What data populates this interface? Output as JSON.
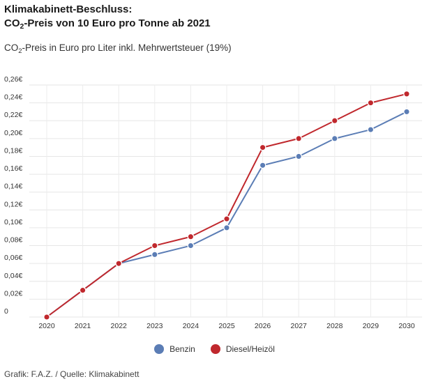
{
  "title": {
    "line1": "Klimakabinett-Beschluss:",
    "line2_pre": "CO",
    "line2_sub": "2",
    "line2_post": "-Preis von 10 Euro pro Tonne ab 2021"
  },
  "subtitle": {
    "pre": "CO",
    "sub": "2",
    "post": "-Preis in Euro pro Liter inkl. Mehrwertsteuer (19%)"
  },
  "source": "Grafik: F.A.Z. / Quelle: Klimakabinett",
  "chart_data": {
    "type": "line",
    "x": [
      2020,
      2021,
      2022,
      2023,
      2024,
      2025,
      2026,
      2027,
      2028,
      2029,
      2030
    ],
    "y_ticks": [
      0,
      0.02,
      0.04,
      0.06,
      0.08,
      0.1,
      0.12,
      0.14,
      0.16,
      0.18,
      0.2,
      0.22,
      0.24,
      0.26
    ],
    "y_tick_labels": [
      "0",
      "0,02€",
      "0,04€",
      "0,06€",
      "0,08€",
      "0,10€",
      "0,12€",
      "0,14€",
      "0,16€",
      "0,18€",
      "0,20€",
      "0,22€",
      "0,24€",
      "0,26€"
    ],
    "ylim": [
      0,
      0.26
    ],
    "grid": true,
    "legend_position": "bottom-center",
    "series": [
      {
        "name": "Benzin",
        "color": "#5b7db5",
        "values": [
          0,
          0.03,
          0.06,
          0.07,
          0.08,
          0.1,
          0.17,
          0.18,
          0.2,
          0.21,
          0.23
        ]
      },
      {
        "name": "Diesel/Heizöl",
        "color": "#c0282d",
        "values": [
          0,
          0.03,
          0.06,
          0.08,
          0.09,
          0.11,
          0.19,
          0.2,
          0.22,
          0.24,
          0.25
        ]
      }
    ]
  }
}
